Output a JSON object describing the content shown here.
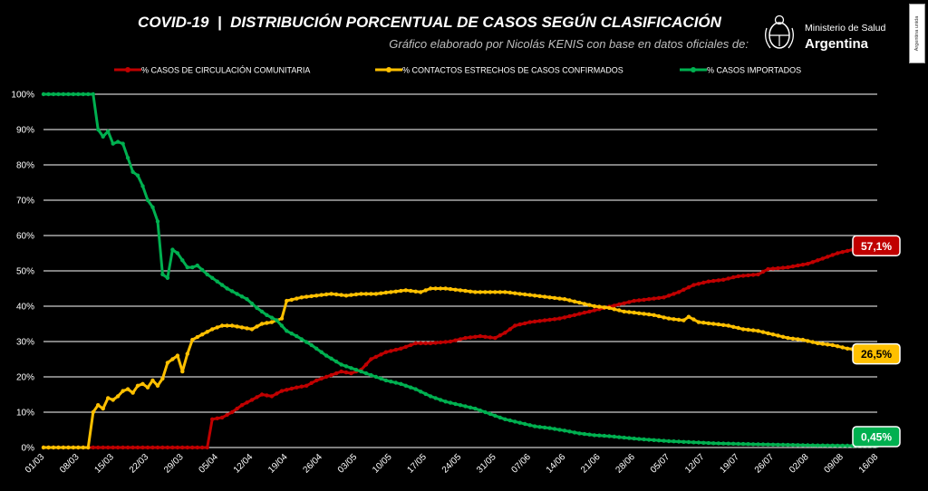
{
  "header": {
    "title": "COVID-19  |  DISTRIBUCIÓN PORCENTUAL DE CASOS SEGÚN CLASIFICACIÓN",
    "subtitle": "Gráfico elaborado por Nicolás KENIS con base en datos oficiales de:"
  },
  "logo": {
    "icon": "argentina-coat-of-arms-icon",
    "line1": "Ministerio de Salud",
    "line2": "Argentina"
  },
  "side_tag": "Argentina unida",
  "colors": {
    "background": "#000000",
    "grid": "#ffffff",
    "comunitaria": "#c00000",
    "contactos": "#ffc000",
    "importados": "#00b050",
    "text": "#ffffff"
  },
  "chart_data": {
    "type": "line",
    "title": "COVID-19  |  DISTRIBUCIÓN PORCENTUAL DE CASOS SEGÚN CLASIFICACIÓN",
    "subtitle": "Gráfico elaborado por Nicolás KENIS con base en datos oficiales de:",
    "xlabel": "",
    "ylabel": "",
    "x_tick_labels": [
      "01/03",
      "08/03",
      "15/03",
      "22/03",
      "29/03",
      "05/04",
      "12/04",
      "19/04",
      "26/04",
      "03/05",
      "10/05",
      "17/05",
      "24/05",
      "31/05",
      "07/06",
      "14/06",
      "21/06",
      "28/06",
      "05/07",
      "12/07",
      "19/07",
      "26/07",
      "02/08",
      "09/08",
      "16/08"
    ],
    "y_tick_labels": [
      "0%",
      "10%",
      "20%",
      "30%",
      "40%",
      "50%",
      "60%",
      "70%",
      "80%",
      "90%",
      "100%"
    ],
    "ylim": [
      0,
      100
    ],
    "x_range_days": [
      0,
      168
    ],
    "x_unit": "days since 01/03",
    "grid": true,
    "legend_position": "top",
    "series": [
      {
        "name": "% CASOS DE CIRCULACIÓN COMUNITARIA",
        "color": "#c00000",
        "end_label": "57,1%",
        "points": [
          [
            0,
            0
          ],
          [
            33,
            0
          ],
          [
            34,
            8
          ],
          [
            36,
            8.5
          ],
          [
            38,
            10
          ],
          [
            40,
            12
          ],
          [
            42,
            13.5
          ],
          [
            44,
            15
          ],
          [
            46,
            14.5
          ],
          [
            48,
            16
          ],
          [
            51,
            17
          ],
          [
            53,
            17.5
          ],
          [
            55,
            19
          ],
          [
            58,
            20.5
          ],
          [
            60,
            21.5
          ],
          [
            62,
            21
          ],
          [
            64,
            22
          ],
          [
            66,
            25
          ],
          [
            69,
            27
          ],
          [
            72,
            28
          ],
          [
            75,
            29.5
          ],
          [
            78,
            29.5
          ],
          [
            82,
            30
          ],
          [
            85,
            31
          ],
          [
            88,
            31.5
          ],
          [
            91,
            31
          ],
          [
            93,
            32.5
          ],
          [
            95,
            34.5
          ],
          [
            98,
            35.5
          ],
          [
            101,
            36
          ],
          [
            104,
            36.5
          ],
          [
            107,
            37.5
          ],
          [
            110,
            38.5
          ],
          [
            113,
            39.5
          ],
          [
            116,
            40.5
          ],
          [
            119,
            41.5
          ],
          [
            122,
            42
          ],
          [
            125,
            42.5
          ],
          [
            128,
            44
          ],
          [
            131,
            46
          ],
          [
            134,
            47
          ],
          [
            137,
            47.5
          ],
          [
            140,
            48.5
          ],
          [
            144,
            49
          ],
          [
            146,
            50.5
          ],
          [
            150,
            51
          ],
          [
            154,
            52
          ],
          [
            157,
            53.5
          ],
          [
            160,
            55
          ],
          [
            163,
            56
          ],
          [
            166,
            57
          ],
          [
            168,
            57.1
          ]
        ]
      },
      {
        "name": "% CONTACTOS ESTRECHOS DE CASOS CONFIRMADOS",
        "color": "#ffc000",
        "end_label": "26,5%",
        "points": [
          [
            0,
            0
          ],
          [
            9,
            0
          ],
          [
            10,
            10
          ],
          [
            11,
            12
          ],
          [
            12,
            11
          ],
          [
            13,
            14
          ],
          [
            14,
            13.5
          ],
          [
            15,
            14.5
          ],
          [
            16,
            16
          ],
          [
            17,
            16.5
          ],
          [
            18,
            15.5
          ],
          [
            19,
            17.5
          ],
          [
            20,
            18
          ],
          [
            21,
            17
          ],
          [
            22,
            19
          ],
          [
            23,
            17.5
          ],
          [
            24,
            19.5
          ],
          [
            25,
            24
          ],
          [
            26,
            25
          ],
          [
            27,
            26
          ],
          [
            28,
            21.5
          ],
          [
            29,
            26.5
          ],
          [
            30,
            30.5
          ],
          [
            32,
            32
          ],
          [
            34,
            33.5
          ],
          [
            36,
            34.5
          ],
          [
            38,
            34.5
          ],
          [
            40,
            34
          ],
          [
            42,
            33.5
          ],
          [
            44,
            35
          ],
          [
            46,
            35.5
          ],
          [
            48,
            36.5
          ],
          [
            49,
            41.5
          ],
          [
            52,
            42.5
          ],
          [
            55,
            43
          ],
          [
            58,
            43.5
          ],
          [
            61,
            43
          ],
          [
            64,
            43.5
          ],
          [
            67,
            43.5
          ],
          [
            70,
            44
          ],
          [
            73,
            44.5
          ],
          [
            76,
            44
          ],
          [
            78,
            45
          ],
          [
            81,
            45
          ],
          [
            84,
            44.5
          ],
          [
            87,
            44
          ],
          [
            90,
            44
          ],
          [
            93,
            44
          ],
          [
            96,
            43.5
          ],
          [
            99,
            43
          ],
          [
            102,
            42.5
          ],
          [
            105,
            42
          ],
          [
            108,
            41
          ],
          [
            111,
            40
          ],
          [
            114,
            39.5
          ],
          [
            117,
            38.5
          ],
          [
            120,
            38
          ],
          [
            123,
            37.5
          ],
          [
            126,
            36.5
          ],
          [
            129,
            36
          ],
          [
            130,
            37
          ],
          [
            132,
            35.5
          ],
          [
            135,
            35
          ],
          [
            138,
            34.5
          ],
          [
            141,
            33.5
          ],
          [
            144,
            33
          ],
          [
            147,
            32
          ],
          [
            150,
            31
          ],
          [
            153,
            30.5
          ],
          [
            156,
            29.5
          ],
          [
            159,
            29
          ],
          [
            162,
            28
          ],
          [
            165,
            27.5
          ],
          [
            168,
            26.5
          ]
        ]
      },
      {
        "name": "% CASOS IMPORTADOS",
        "color": "#00b050",
        "end_label": "0,45%",
        "points": [
          [
            0,
            100
          ],
          [
            10,
            100
          ],
          [
            11,
            90
          ],
          [
            12,
            88
          ],
          [
            13,
            89.5
          ],
          [
            14,
            86
          ],
          [
            15,
            86.5
          ],
          [
            16,
            86
          ],
          [
            17,
            82
          ],
          [
            18,
            78
          ],
          [
            19,
            77
          ],
          [
            20,
            74
          ],
          [
            21,
            70
          ],
          [
            22,
            68
          ],
          [
            23,
            64
          ],
          [
            24,
            49
          ],
          [
            25,
            48
          ],
          [
            26,
            56
          ],
          [
            27,
            55
          ],
          [
            28,
            53
          ],
          [
            29,
            51
          ],
          [
            30,
            51
          ],
          [
            31,
            51.5
          ],
          [
            33,
            49
          ],
          [
            35,
            47
          ],
          [
            37,
            45
          ],
          [
            39,
            43.5
          ],
          [
            41,
            42
          ],
          [
            43,
            39.5
          ],
          [
            45,
            37.5
          ],
          [
            47,
            36
          ],
          [
            49,
            33
          ],
          [
            51,
            31.5
          ],
          [
            54,
            29
          ],
          [
            57,
            26
          ],
          [
            60,
            23.5
          ],
          [
            63,
            22
          ],
          [
            66,
            20.5
          ],
          [
            69,
            19
          ],
          [
            72,
            18
          ],
          [
            75,
            16.5
          ],
          [
            78,
            14.5
          ],
          [
            81,
            13
          ],
          [
            84,
            12
          ],
          [
            87,
            11
          ],
          [
            90,
            9.5
          ],
          [
            93,
            8
          ],
          [
            96,
            7
          ],
          [
            99,
            6
          ],
          [
            102,
            5.5
          ],
          [
            105,
            4.8
          ],
          [
            108,
            4
          ],
          [
            111,
            3.5
          ],
          [
            114,
            3.2
          ],
          [
            117,
            2.8
          ],
          [
            120,
            2.4
          ],
          [
            123,
            2.1
          ],
          [
            126,
            1.8
          ],
          [
            129,
            1.6
          ],
          [
            132,
            1.4
          ],
          [
            135,
            1.2
          ],
          [
            138,
            1.1
          ],
          [
            141,
            1
          ],
          [
            144,
            0.9
          ],
          [
            148,
            0.8
          ],
          [
            152,
            0.7
          ],
          [
            156,
            0.6
          ],
          [
            160,
            0.55
          ],
          [
            164,
            0.5
          ],
          [
            168,
            0.45
          ]
        ]
      }
    ]
  }
}
